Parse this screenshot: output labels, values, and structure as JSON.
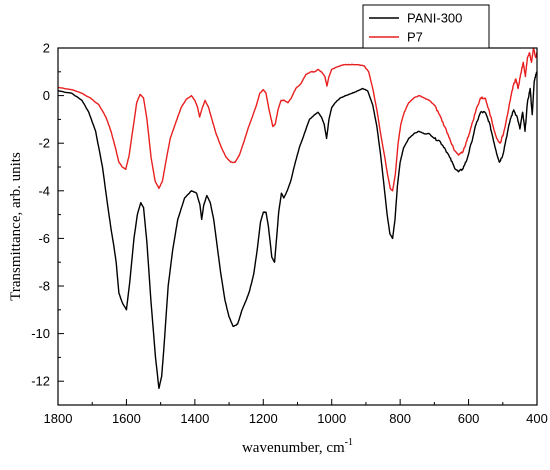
{
  "chart_data": {
    "type": "line",
    "title": "",
    "xlabel": "wavenumber, cm",
    "xlabel_superscript": "-1",
    "ylabel": "Transmittance, arb. units",
    "xlim": [
      1800,
      400
    ],
    "ylim": [
      -13,
      2
    ],
    "x_reversed": true,
    "x_ticks": [
      1800,
      1600,
      1400,
      1200,
      1000,
      800,
      600,
      400
    ],
    "y_ticks": [
      2,
      0,
      -2,
      -4,
      -6,
      -8,
      -10,
      -12
    ],
    "grid": false,
    "legend_position": "top-right",
    "series": [
      {
        "name": "PANI-300",
        "color": "#000000",
        "points": [
          [
            1800,
            0.2
          ],
          [
            1760,
            0.1
          ],
          [
            1730,
            -0.2
          ],
          [
            1710,
            -0.7
          ],
          [
            1690,
            -1.5
          ],
          [
            1670,
            -3.0
          ],
          [
            1655,
            -4.6
          ],
          [
            1645,
            -5.6
          ],
          [
            1637,
            -6.3
          ],
          [
            1630,
            -7.0
          ],
          [
            1622,
            -8.3
          ],
          [
            1612,
            -8.7
          ],
          [
            1600,
            -9.0
          ],
          [
            1590,
            -7.8
          ],
          [
            1578,
            -6.0
          ],
          [
            1568,
            -5.0
          ],
          [
            1558,
            -4.5
          ],
          [
            1550,
            -4.7
          ],
          [
            1540,
            -6.2
          ],
          [
            1528,
            -8.7
          ],
          [
            1515,
            -11.0
          ],
          [
            1505,
            -12.3
          ],
          [
            1497,
            -11.8
          ],
          [
            1490,
            -10.5
          ],
          [
            1478,
            -8.0
          ],
          [
            1465,
            -6.5
          ],
          [
            1450,
            -5.2
          ],
          [
            1430,
            -4.3
          ],
          [
            1410,
            -4.0
          ],
          [
            1395,
            -4.1
          ],
          [
            1385,
            -4.6
          ],
          [
            1380,
            -5.2
          ],
          [
            1374,
            -4.6
          ],
          [
            1365,
            -4.2
          ],
          [
            1355,
            -4.5
          ],
          [
            1345,
            -5.2
          ],
          [
            1335,
            -6.3
          ],
          [
            1325,
            -7.4
          ],
          [
            1312,
            -8.6
          ],
          [
            1300,
            -9.3
          ],
          [
            1288,
            -9.7
          ],
          [
            1275,
            -9.6
          ],
          [
            1262,
            -9.0
          ],
          [
            1250,
            -8.6
          ],
          [
            1240,
            -8.2
          ],
          [
            1228,
            -7.5
          ],
          [
            1218,
            -6.5
          ],
          [
            1208,
            -5.3
          ],
          [
            1200,
            -4.9
          ],
          [
            1192,
            -4.9
          ],
          [
            1185,
            -5.5
          ],
          [
            1175,
            -6.8
          ],
          [
            1167,
            -7.0
          ],
          [
            1160,
            -5.8
          ],
          [
            1155,
            -4.9
          ],
          [
            1147,
            -4.1
          ],
          [
            1140,
            -4.3
          ],
          [
            1130,
            -4.0
          ],
          [
            1120,
            -3.6
          ],
          [
            1108,
            -2.9
          ],
          [
            1095,
            -2.2
          ],
          [
            1080,
            -1.6
          ],
          [
            1065,
            -1.0
          ],
          [
            1050,
            -0.8
          ],
          [
            1040,
            -0.7
          ],
          [
            1030,
            -0.9
          ],
          [
            1022,
            -1.2
          ],
          [
            1015,
            -1.8
          ],
          [
            1008,
            -1.0
          ],
          [
            1000,
            -0.5
          ],
          [
            990,
            -0.3
          ],
          [
            975,
            -0.1
          ],
          [
            960,
            0.0
          ],
          [
            940,
            0.1
          ],
          [
            925,
            0.2
          ],
          [
            910,
            0.3
          ],
          [
            895,
            0.2
          ],
          [
            880,
            -0.4
          ],
          [
            868,
            -1.3
          ],
          [
            857,
            -2.5
          ],
          [
            847,
            -3.8
          ],
          [
            838,
            -5.0
          ],
          [
            830,
            -5.8
          ],
          [
            822,
            -6.0
          ],
          [
            815,
            -5.2
          ],
          [
            808,
            -3.8
          ],
          [
            800,
            -2.8
          ],
          [
            790,
            -2.2
          ],
          [
            775,
            -1.8
          ],
          [
            760,
            -1.6
          ],
          [
            745,
            -1.5
          ],
          [
            730,
            -1.6
          ],
          [
            715,
            -1.6
          ],
          [
            700,
            -1.8
          ],
          [
            685,
            -1.9
          ],
          [
            670,
            -2.2
          ],
          [
            655,
            -2.6
          ],
          [
            642,
            -3.0
          ],
          [
            630,
            -3.2
          ],
          [
            618,
            -3.1
          ],
          [
            605,
            -2.7
          ],
          [
            592,
            -2.0
          ],
          [
            578,
            -1.2
          ],
          [
            565,
            -0.7
          ],
          [
            552,
            -0.7
          ],
          [
            540,
            -1.1
          ],
          [
            530,
            -1.7
          ],
          [
            520,
            -2.3
          ],
          [
            510,
            -2.8
          ],
          [
            500,
            -2.5
          ],
          [
            490,
            -1.8
          ],
          [
            478,
            -1.0
          ],
          [
            468,
            -0.6
          ],
          [
            458,
            -0.9
          ],
          [
            450,
            -1.4
          ],
          [
            442,
            -0.7
          ],
          [
            435,
            -1.5
          ],
          [
            428,
            -0.3
          ],
          [
            420,
            0.3
          ],
          [
            414,
            -0.8
          ],
          [
            408,
            0.6
          ],
          [
            403,
            0.9
          ],
          [
            400,
            1.0
          ]
        ]
      },
      {
        "name": "P7",
        "color": "#e8201f",
        "points": [
          [
            1800,
            0.35
          ],
          [
            1760,
            0.25
          ],
          [
            1730,
            0.1
          ],
          [
            1705,
            -0.1
          ],
          [
            1680,
            -0.4
          ],
          [
            1660,
            -0.9
          ],
          [
            1645,
            -1.5
          ],
          [
            1632,
            -2.2
          ],
          [
            1622,
            -2.8
          ],
          [
            1612,
            -3.0
          ],
          [
            1602,
            -3.1
          ],
          [
            1592,
            -2.5
          ],
          [
            1580,
            -1.3
          ],
          [
            1570,
            -0.3
          ],
          [
            1560,
            0.05
          ],
          [
            1550,
            -0.1
          ],
          [
            1540,
            -1.0
          ],
          [
            1528,
            -2.6
          ],
          [
            1516,
            -3.6
          ],
          [
            1505,
            -3.9
          ],
          [
            1495,
            -3.6
          ],
          [
            1485,
            -2.8
          ],
          [
            1472,
            -1.8
          ],
          [
            1455,
            -1.1
          ],
          [
            1440,
            -0.5
          ],
          [
            1425,
            -0.15
          ],
          [
            1410,
            -0.0
          ],
          [
            1400,
            -0.2
          ],
          [
            1392,
            -0.5
          ],
          [
            1386,
            -0.9
          ],
          [
            1378,
            -0.5
          ],
          [
            1370,
            -0.2
          ],
          [
            1360,
            -0.5
          ],
          [
            1350,
            -1.0
          ],
          [
            1338,
            -1.6
          ],
          [
            1322,
            -2.2
          ],
          [
            1308,
            -2.6
          ],
          [
            1295,
            -2.8
          ],
          [
            1282,
            -2.8
          ],
          [
            1270,
            -2.5
          ],
          [
            1258,
            -2.0
          ],
          [
            1245,
            -1.4
          ],
          [
            1232,
            -0.9
          ],
          [
            1220,
            -0.4
          ],
          [
            1210,
            0.1
          ],
          [
            1200,
            0.25
          ],
          [
            1192,
            0.1
          ],
          [
            1183,
            -0.6
          ],
          [
            1172,
            -1.3
          ],
          [
            1165,
            -1.2
          ],
          [
            1157,
            -0.6
          ],
          [
            1148,
            -0.2
          ],
          [
            1138,
            -0.2
          ],
          [
            1128,
            -0.3
          ],
          [
            1118,
            -0.1
          ],
          [
            1105,
            0.3
          ],
          [
            1090,
            0.5
          ],
          [
            1075,
            0.9
          ],
          [
            1060,
            1.0
          ],
          [
            1050,
            1.0
          ],
          [
            1040,
            1.1
          ],
          [
            1030,
            1.0
          ],
          [
            1020,
            0.8
          ],
          [
            1014,
            0.4
          ],
          [
            1008,
            0.8
          ],
          [
            1000,
            1.1
          ],
          [
            985,
            1.2
          ],
          [
            965,
            1.3
          ],
          [
            945,
            1.3
          ],
          [
            925,
            1.3
          ],
          [
            905,
            1.25
          ],
          [
            892,
            1.0
          ],
          [
            880,
            0.3
          ],
          [
            868,
            -0.6
          ],
          [
            857,
            -1.6
          ],
          [
            846,
            -2.5
          ],
          [
            837,
            -3.3
          ],
          [
            829,
            -3.9
          ],
          [
            822,
            -4.0
          ],
          [
            814,
            -3.3
          ],
          [
            806,
            -2.0
          ],
          [
            798,
            -1.2
          ],
          [
            788,
            -0.7
          ],
          [
            775,
            -0.3
          ],
          [
            760,
            -0.1
          ],
          [
            745,
            0.0
          ],
          [
            730,
            -0.1
          ],
          [
            715,
            -0.2
          ],
          [
            700,
            -0.4
          ],
          [
            685,
            -0.8
          ],
          [
            670,
            -1.3
          ],
          [
            655,
            -1.8
          ],
          [
            642,
            -2.3
          ],
          [
            630,
            -2.5
          ],
          [
            618,
            -2.4
          ],
          [
            605,
            -1.9
          ],
          [
            592,
            -1.3
          ],
          [
            578,
            -0.6
          ],
          [
            565,
            -0.1
          ],
          [
            552,
            -0.1
          ],
          [
            540,
            -0.6
          ],
          [
            528,
            -1.3
          ],
          [
            518,
            -1.8
          ],
          [
            508,
            -2.0
          ],
          [
            498,
            -1.6
          ],
          [
            488,
            -0.9
          ],
          [
            478,
            -0.2
          ],
          [
            470,
            0.4
          ],
          [
            462,
            0.7
          ],
          [
            455,
            0.3
          ],
          [
            448,
            0.9
          ],
          [
            440,
            1.4
          ],
          [
            434,
            0.8
          ],
          [
            428,
            1.6
          ],
          [
            422,
            1.8
          ],
          [
            416,
            1.4
          ],
          [
            410,
            2.0
          ],
          [
            404,
            1.6
          ],
          [
            400,
            1.8
          ]
        ]
      }
    ]
  }
}
